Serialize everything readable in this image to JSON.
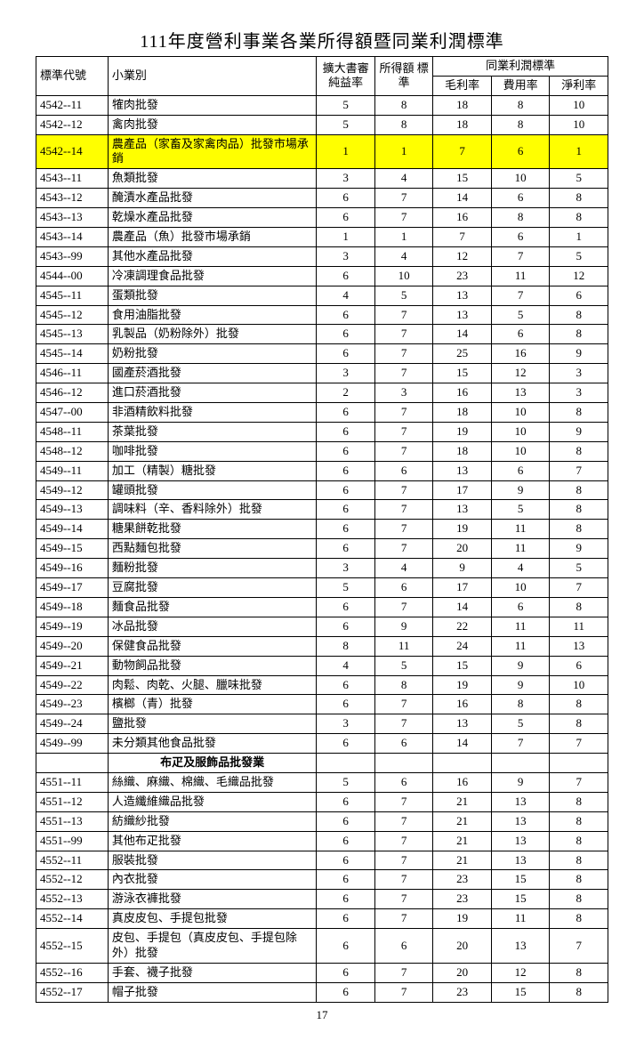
{
  "title": "111年度營利事業各業所得額暨同業利潤標準",
  "page_number": "17",
  "headers": {
    "code": "標準代號",
    "category": "小業別",
    "audit": "擴大書審\n純益率",
    "income": "所得額\n標準",
    "industry": "同業利潤標準",
    "gross": "毛利率",
    "expense": "費用率",
    "net": "淨利率"
  },
  "highlight_color": "#ffff00",
  "rows": [
    {
      "code": "4542--11",
      "name": "㹊肉批發",
      "c1": "5",
      "c2": "8",
      "c3": "18",
      "c4": "8",
      "c5": "10"
    },
    {
      "code": "4542--12",
      "name": "禽肉批發",
      "c1": "5",
      "c2": "8",
      "c3": "18",
      "c4": "8",
      "c5": "10"
    },
    {
      "code": "4542--14",
      "name": "農產品（家畜及家禽肉品）批發市場承銷",
      "c1": "1",
      "c2": "1",
      "c3": "7",
      "c4": "6",
      "c5": "1",
      "highlight": true
    },
    {
      "code": "4543--11",
      "name": "魚類批發",
      "c1": "3",
      "c2": "4",
      "c3": "15",
      "c4": "10",
      "c5": "5"
    },
    {
      "code": "4543--12",
      "name": "醃漬水產品批發",
      "c1": "6",
      "c2": "7",
      "c3": "14",
      "c4": "6",
      "c5": "8"
    },
    {
      "code": "4543--13",
      "name": "乾燥水產品批發",
      "c1": "6",
      "c2": "7",
      "c3": "16",
      "c4": "8",
      "c5": "8"
    },
    {
      "code": "4543--14",
      "name": "農產品（魚）批發市場承銷",
      "c1": "1",
      "c2": "1",
      "c3": "7",
      "c4": "6",
      "c5": "1"
    },
    {
      "code": "4543--99",
      "name": "其他水產品批發",
      "c1": "3",
      "c2": "4",
      "c3": "12",
      "c4": "7",
      "c5": "5"
    },
    {
      "code": "4544--00",
      "name": "冷凍調理食品批發",
      "c1": "6",
      "c2": "10",
      "c3": "23",
      "c4": "11",
      "c5": "12"
    },
    {
      "code": "4545--11",
      "name": "蛋類批發",
      "c1": "4",
      "c2": "5",
      "c3": "13",
      "c4": "7",
      "c5": "6"
    },
    {
      "code": "4545--12",
      "name": "食用油脂批發",
      "c1": "6",
      "c2": "7",
      "c3": "13",
      "c4": "5",
      "c5": "8"
    },
    {
      "code": "4545--13",
      "name": "乳製品（奶粉除外）批發",
      "c1": "6",
      "c2": "7",
      "c3": "14",
      "c4": "6",
      "c5": "8"
    },
    {
      "code": "4545--14",
      "name": "奶粉批發",
      "c1": "6",
      "c2": "7",
      "c3": "25",
      "c4": "16",
      "c5": "9"
    },
    {
      "code": "4546--11",
      "name": "國產菸酒批發",
      "c1": "3",
      "c2": "7",
      "c3": "15",
      "c4": "12",
      "c5": "3"
    },
    {
      "code": "4546--12",
      "name": "進口菸酒批發",
      "c1": "2",
      "c2": "3",
      "c3": "16",
      "c4": "13",
      "c5": "3"
    },
    {
      "code": "4547--00",
      "name": "非酒精飲料批發",
      "c1": "6",
      "c2": "7",
      "c3": "18",
      "c4": "10",
      "c5": "8"
    },
    {
      "code": "4548--11",
      "name": "茶葉批發",
      "c1": "6",
      "c2": "7",
      "c3": "19",
      "c4": "10",
      "c5": "9"
    },
    {
      "code": "4548--12",
      "name": "咖啡批發",
      "c1": "6",
      "c2": "7",
      "c3": "18",
      "c4": "10",
      "c5": "8"
    },
    {
      "code": "4549--11",
      "name": "加工（精製）糖批發",
      "c1": "6",
      "c2": "6",
      "c3": "13",
      "c4": "6",
      "c5": "7"
    },
    {
      "code": "4549--12",
      "name": "罐頭批發",
      "c1": "6",
      "c2": "7",
      "c3": "17",
      "c4": "9",
      "c5": "8"
    },
    {
      "code": "4549--13",
      "name": "調味料（辛、香料除外）批發",
      "c1": "6",
      "c2": "7",
      "c3": "13",
      "c4": "5",
      "c5": "8"
    },
    {
      "code": "4549--14",
      "name": "糖果餅乾批發",
      "c1": "6",
      "c2": "7",
      "c3": "19",
      "c4": "11",
      "c5": "8"
    },
    {
      "code": "4549--15",
      "name": "西點麵包批發",
      "c1": "6",
      "c2": "7",
      "c3": "20",
      "c4": "11",
      "c5": "9"
    },
    {
      "code": "4549--16",
      "name": "麵粉批發",
      "c1": "3",
      "c2": "4",
      "c3": "9",
      "c4": "4",
      "c5": "5"
    },
    {
      "code": "4549--17",
      "name": "豆腐批發",
      "c1": "5",
      "c2": "6",
      "c3": "17",
      "c4": "10",
      "c5": "7"
    },
    {
      "code": "4549--18",
      "name": "麵食品批發",
      "c1": "6",
      "c2": "7",
      "c3": "14",
      "c4": "6",
      "c5": "8"
    },
    {
      "code": "4549--19",
      "name": "冰品批發",
      "c1": "6",
      "c2": "9",
      "c3": "22",
      "c4": "11",
      "c5": "11"
    },
    {
      "code": "4549--20",
      "name": "保健食品批發",
      "c1": "8",
      "c2": "11",
      "c3": "24",
      "c4": "11",
      "c5": "13"
    },
    {
      "code": "4549--21",
      "name": "動物飼品批發",
      "c1": "4",
      "c2": "5",
      "c3": "15",
      "c4": "9",
      "c5": "6"
    },
    {
      "code": "4549--22",
      "name": "肉鬆、肉乾、火腿、臘味批發",
      "c1": "6",
      "c2": "8",
      "c3": "19",
      "c4": "9",
      "c5": "10"
    },
    {
      "code": "4549--23",
      "name": "檳榔（青）批發",
      "c1": "6",
      "c2": "7",
      "c3": "16",
      "c4": "8",
      "c5": "8"
    },
    {
      "code": "4549--24",
      "name": "鹽批發",
      "c1": "3",
      "c2": "7",
      "c3": "13",
      "c4": "5",
      "c5": "8"
    },
    {
      "code": "4549--99",
      "name": "未分類其他食品批發",
      "c1": "6",
      "c2": "6",
      "c3": "14",
      "c4": "7",
      "c5": "7"
    },
    {
      "section": "布疋及服飾品批發業"
    },
    {
      "code": "4551--11",
      "name": "絲織、麻織、棉織、毛織品批發",
      "c1": "5",
      "c2": "6",
      "c3": "16",
      "c4": "9",
      "c5": "7"
    },
    {
      "code": "4551--12",
      "name": "人造纖維織品批發",
      "c1": "6",
      "c2": "7",
      "c3": "21",
      "c4": "13",
      "c5": "8"
    },
    {
      "code": "4551--13",
      "name": "紡織紗批發",
      "c1": "6",
      "c2": "7",
      "c3": "21",
      "c4": "13",
      "c5": "8"
    },
    {
      "code": "4551--99",
      "name": "其他布疋批發",
      "c1": "6",
      "c2": "7",
      "c3": "21",
      "c4": "13",
      "c5": "8"
    },
    {
      "code": "4552--11",
      "name": "服裝批發",
      "c1": "6",
      "c2": "7",
      "c3": "21",
      "c4": "13",
      "c5": "8"
    },
    {
      "code": "4552--12",
      "name": "內衣批發",
      "c1": "6",
      "c2": "7",
      "c3": "23",
      "c4": "15",
      "c5": "8"
    },
    {
      "code": "4552--13",
      "name": "游泳衣褲批發",
      "c1": "6",
      "c2": "7",
      "c3": "23",
      "c4": "15",
      "c5": "8"
    },
    {
      "code": "4552--14",
      "name": "真皮皮包、手提包批發",
      "c1": "6",
      "c2": "7",
      "c3": "19",
      "c4": "11",
      "c5": "8"
    },
    {
      "code": "4552--15",
      "name": "皮包、手提包（真皮皮包、手提包除外）批發",
      "c1": "6",
      "c2": "6",
      "c3": "20",
      "c4": "13",
      "c5": "7"
    },
    {
      "code": "4552--16",
      "name": "手套、襪子批發",
      "c1": "6",
      "c2": "7",
      "c3": "20",
      "c4": "12",
      "c5": "8"
    },
    {
      "code": "4552--17",
      "name": "帽子批發",
      "c1": "6",
      "c2": "7",
      "c3": "23",
      "c4": "15",
      "c5": "8"
    }
  ]
}
